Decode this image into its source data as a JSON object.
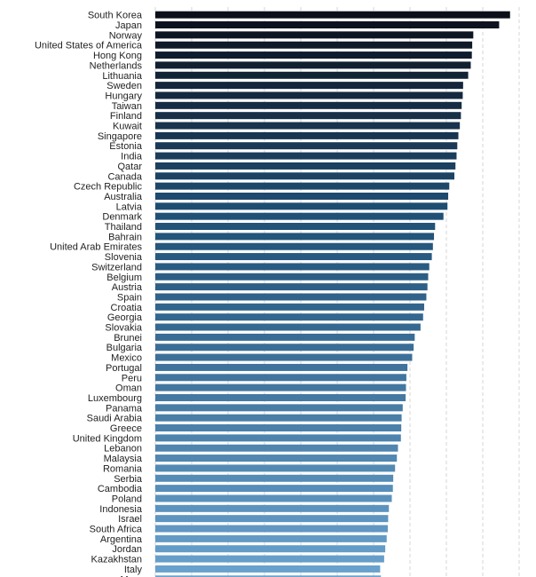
{
  "chart_data": {
    "type": "bar",
    "orientation": "horizontal",
    "title": "",
    "xlabel": "",
    "ylabel": "",
    "xlim": [
      0,
      100
    ],
    "grid": true,
    "color_dark": "#0c0f1a",
    "color_mid": "#1f4f75",
    "color_light": "#6aa3cf",
    "categories": [
      "South Korea",
      "Japan",
      "Norway",
      "United States of America",
      "Hong Kong",
      "Netherlands",
      "Lithuania",
      "Sweden",
      "Hungary",
      "Taiwan",
      "Finland",
      "Kuwait",
      "Singapore",
      "Estonia",
      "India",
      "Qatar",
      "Canada",
      "Czech Republic",
      "Australia",
      "Latvia",
      "Denmark",
      "Thailand",
      "Bahrain",
      "United Arab Emirates",
      "Slovenia",
      "Switzerland",
      "Belgium",
      "Austria",
      "Spain",
      "Croatia",
      "Georgia",
      "Slovakia",
      "Brunei",
      "Bulgaria",
      "Mexico",
      "Portugal",
      "Peru",
      "Oman",
      "Luxembourg",
      "Panama",
      "Saudi Arabia",
      "Greece",
      "United Kingdom",
      "Lebanon",
      "Malaysia",
      "Romania",
      "Serbia",
      "Cambodia",
      "Poland",
      "Indonesia",
      "Israel",
      "South Africa",
      "Argentina",
      "Jordan",
      "Kazakhstan",
      "Italy",
      "Mo..."
    ],
    "values": [
      97.5,
      94.5,
      87.4,
      87.1,
      87.0,
      86.7,
      86.0,
      84.6,
      84.5,
      84.2,
      84.0,
      83.7,
      83.3,
      83.0,
      82.8,
      82.5,
      82.2,
      80.8,
      80.5,
      80.3,
      79.2,
      76.9,
      76.6,
      76.3,
      76.0,
      75.3,
      75.0,
      74.8,
      74.5,
      73.9,
      73.6,
      72.9,
      71.3,
      71.0,
      70.6,
      69.3,
      69.0,
      68.9,
      68.8,
      68.0,
      67.7,
      67.6,
      67.5,
      66.7,
      66.4,
      65.9,
      65.4,
      65.3,
      65.0,
      64.2,
      64.0,
      63.9,
      63.6,
      63.2,
      62.9,
      61.8,
      62.0
    ]
  }
}
